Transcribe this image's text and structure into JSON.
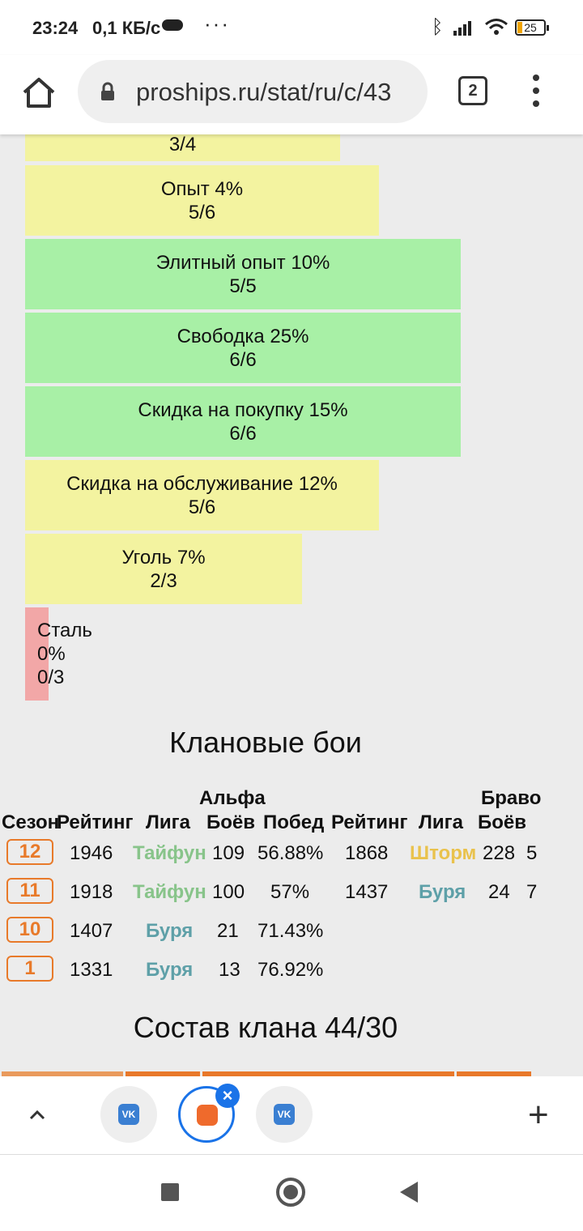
{
  "status_bar": {
    "time": "23:24",
    "speed": "0,1 КБ/с",
    "more": "···",
    "battery": "25"
  },
  "browser": {
    "url": "proships.ru/stat/ru/c/43",
    "tab_count": "2"
  },
  "bonus_bars": [
    {
      "title": "",
      "value": "3/4",
      "color": "yellow",
      "fill": 0.75
    },
    {
      "title": "Опыт 4%",
      "value": "5/6",
      "color": "yellow",
      "fill": 0.83
    },
    {
      "title": "Элитный опыт 10%",
      "value": "5/5",
      "color": "green",
      "fill": 1.0
    },
    {
      "title": "Свободка 25%",
      "value": "6/6",
      "color": "green",
      "fill": 1.0
    },
    {
      "title": "Скидка на покупку 15%",
      "value": "6/6",
      "color": "green",
      "fill": 1.0
    },
    {
      "title": "Скидка на обслуживание 12%",
      "value": "5/6",
      "color": "yellow",
      "fill": 0.83
    },
    {
      "title": "Уголь 7%",
      "value": "2/3",
      "color": "yellow",
      "fill": 0.67
    },
    {
      "title": "Сталь",
      "percent": "0%",
      "value": "0/3",
      "color": "red",
      "fill": 0.0
    }
  ],
  "clan_battles": {
    "heading": "Клановые бои",
    "group_alpha": "Альфа",
    "group_bravo": "Браво",
    "headers": [
      "Сезон",
      "Рейтинг",
      "Лига",
      "Боёв",
      "Побед",
      "Рейтинг",
      "Лига",
      "Боёв"
    ],
    "rows": [
      {
        "season": "12",
        "rating": "1946",
        "league": "Тайфун",
        "league_class": "typhoon",
        "battles": "109",
        "wins": "56.88%",
        "rating_b": "1868",
        "league_b": "Шторм",
        "league_b_class": "storm",
        "battles_b": "228",
        "extra": "5"
      },
      {
        "season": "11",
        "rating": "1918",
        "league": "Тайфун",
        "league_class": "typhoon",
        "battles": "100",
        "wins": "57%",
        "rating_b": "1437",
        "league_b": "Буря",
        "league_b_class": "burya",
        "battles_b": "24",
        "extra": "7"
      },
      {
        "season": "10",
        "rating": "1407",
        "league": "Буря",
        "league_class": "burya",
        "battles": "21",
        "wins": "71.43%",
        "rating_b": "",
        "league_b": "",
        "league_b_class": "",
        "battles_b": "",
        "extra": ""
      },
      {
        "season": "1",
        "rating": "1331",
        "league": "Буря",
        "league_class": "burya",
        "battles": "13",
        "wins": "76.92%",
        "rating_b": "",
        "league_b": "",
        "league_b_class": "",
        "battles_b": "",
        "extra": ""
      }
    ]
  },
  "clan_roster": {
    "heading": "Состав клана 44/30"
  },
  "tab_switcher": {
    "tabs": [
      {
        "icon": "vk-icon",
        "label": "VK"
      },
      {
        "icon": "app-icon",
        "label": ""
      },
      {
        "icon": "vk-icon",
        "label": "VK"
      }
    ],
    "close": "×",
    "add": "+"
  }
}
